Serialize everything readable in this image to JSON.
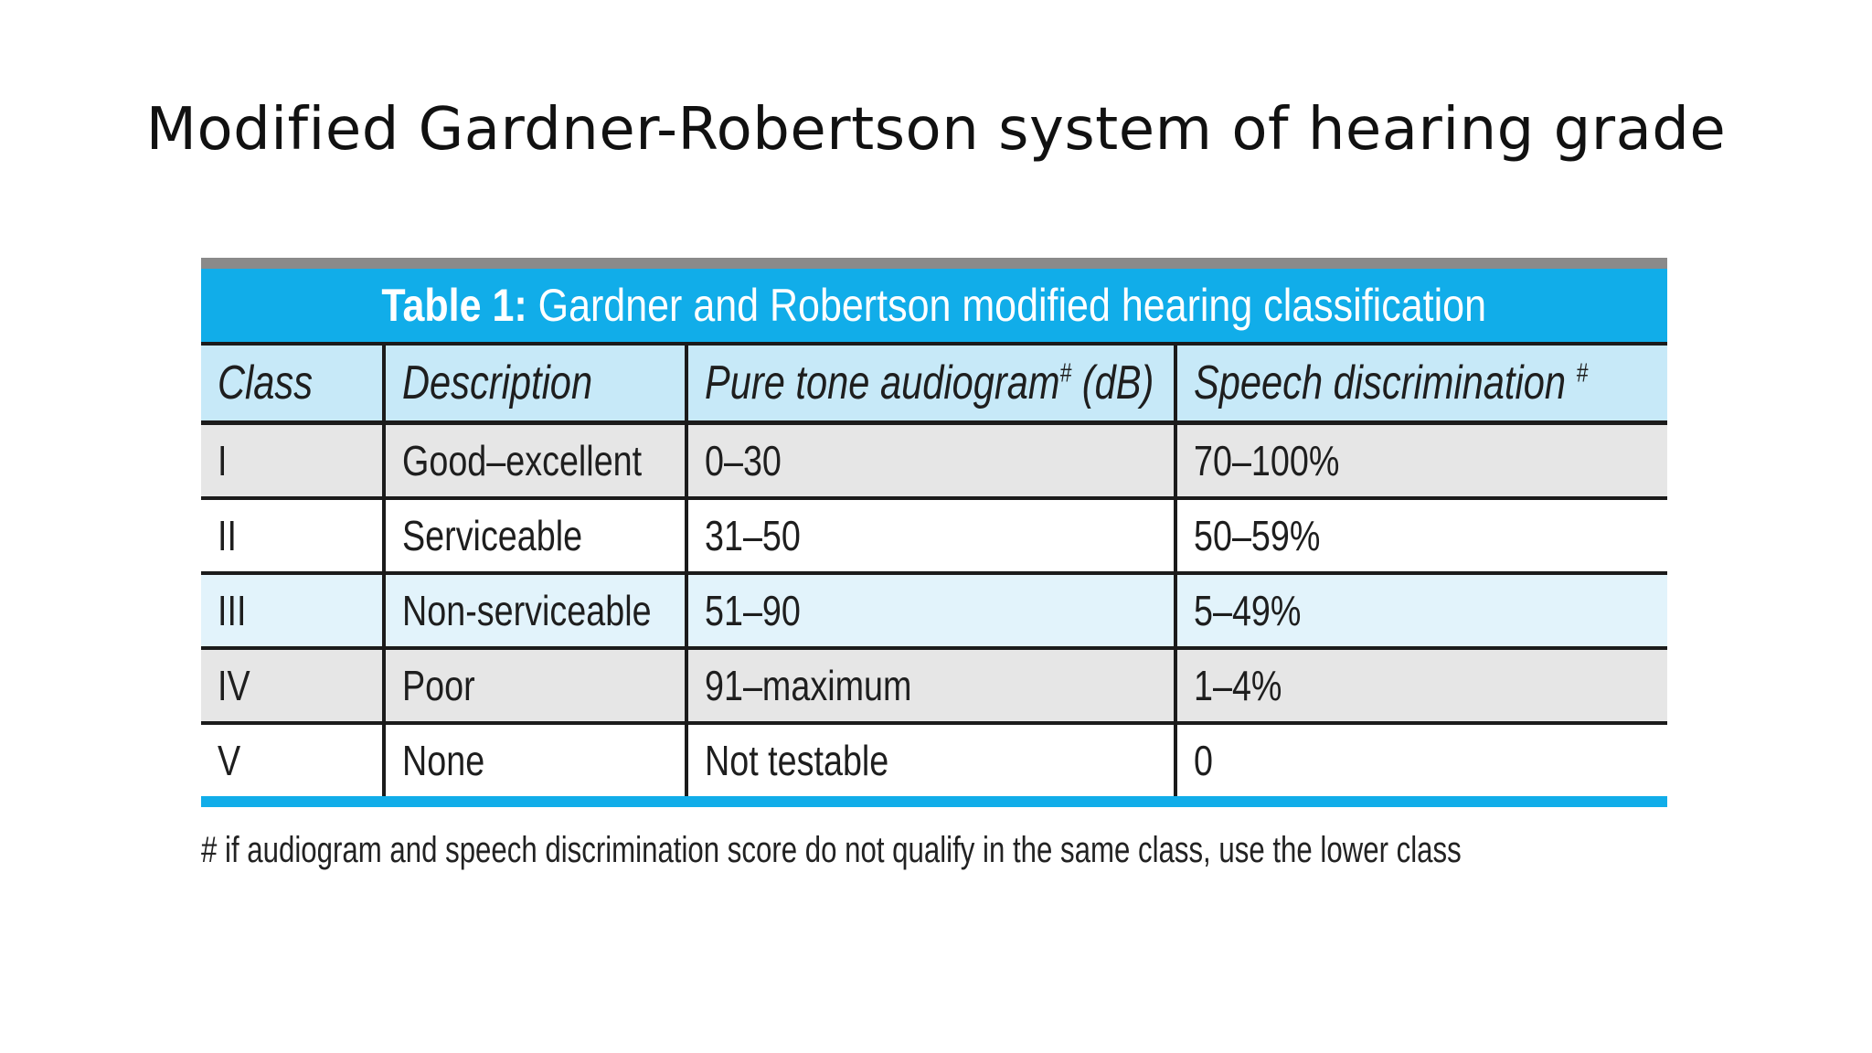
{
  "slide": {
    "title": "Modified Gardner-Robertson system of hearing grade"
  },
  "table": {
    "caption_label": "Table 1:",
    "caption_text": " Gardner and Robertson modified hearing classification",
    "headers": {
      "class": "Class",
      "description": "Description",
      "pure_tone": "Pure tone audiogram",
      "pure_tone_mark": "#",
      "pure_tone_unit": " (dB)",
      "speech": "Speech discrimination ",
      "speech_mark": "#"
    },
    "rows": [
      {
        "class": "I",
        "description": "Good–excellent",
        "pure_tone": "0–30",
        "speech": "70–100%"
      },
      {
        "class": "II",
        "description": "Serviceable",
        "pure_tone": "31–50",
        "speech": "50–59%"
      },
      {
        "class": "III",
        "description": "Non-serviceable",
        "pure_tone": "51–90",
        "speech": "5–49%"
      },
      {
        "class": "IV",
        "description": "Poor",
        "pure_tone": "91–maximum",
        "speech": "1–4%"
      },
      {
        "class": "V",
        "description": "None",
        "pure_tone": "Not testable",
        "speech": "0"
      }
    ],
    "footnote": "# if audiogram and speech discrimination score do not qualify in the same class, use the lower class"
  },
  "colors": {
    "accent_blue": "#11ade9",
    "header_row": "#c7e9f8",
    "row_grey": "#e6e6e6",
    "row_light_blue": "#e2f3fb"
  }
}
